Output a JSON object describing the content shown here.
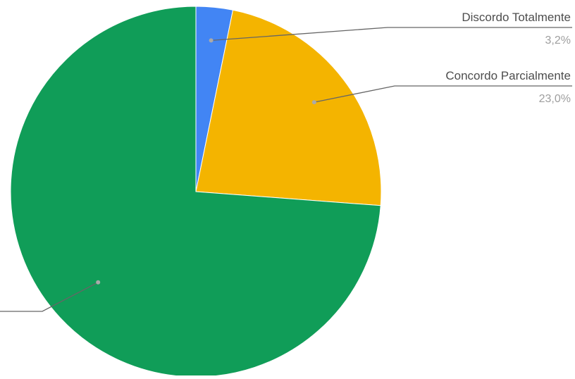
{
  "chart_data": {
    "type": "pie",
    "title": "",
    "start_angle_deg": 0,
    "direction": "clockwise",
    "slices": [
      {
        "label": "Discordo Totalmente",
        "value": 3.2,
        "value_label": "3,2%",
        "color": "#4285f4"
      },
      {
        "label": "Concordo Parcialmente",
        "value": 23.0,
        "value_label": "23,0%",
        "color": "#f4b400"
      },
      {
        "label": "",
        "value": 73.8,
        "value_label": "",
        "color": "#109d58"
      }
    ]
  },
  "colors": {
    "leader_line": "#666666",
    "leader_dot": "#aaaaaa",
    "slice_border": "#ffffff"
  }
}
